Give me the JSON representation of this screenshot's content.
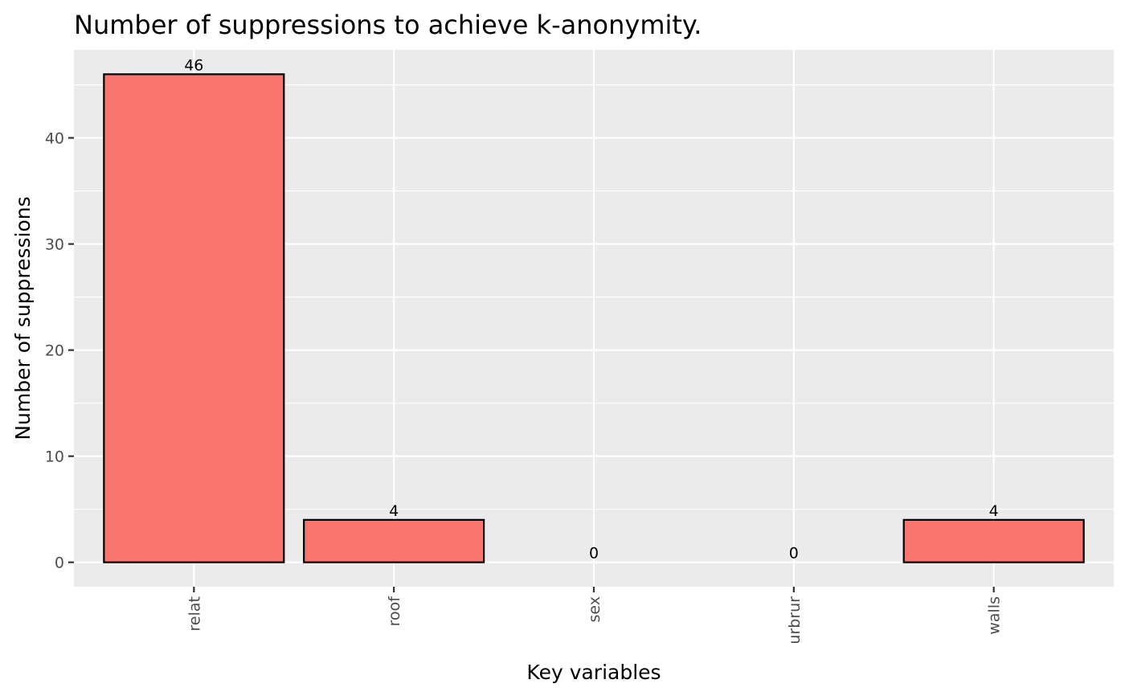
{
  "chart_data": {
    "type": "bar",
    "title": "Number of suppressions to achieve k-anonymity.",
    "xlabel": "Key variables",
    "ylabel": "Number of suppressions",
    "categories": [
      "relat",
      "roof",
      "sex",
      "urbrur",
      "walls"
    ],
    "values": [
      46,
      4,
      0,
      0,
      4
    ],
    "data_labels": [
      "46",
      "4",
      "0",
      "0",
      "4"
    ],
    "yticks": [
      0,
      10,
      20,
      30,
      40
    ],
    "ytick_labels": [
      "0",
      "10",
      "20",
      "30",
      "40"
    ],
    "ylim": [
      -2.3,
      48.3
    ],
    "grid": true,
    "legend": "none",
    "x_tick_rotation": "vertical",
    "colors": {
      "bar_fill": "#F8766D",
      "bar_stroke": "#000000",
      "panel_background": "#EBEBEB",
      "grid_line": "#FFFFFF",
      "tick_text": "#4D4D4D"
    }
  }
}
